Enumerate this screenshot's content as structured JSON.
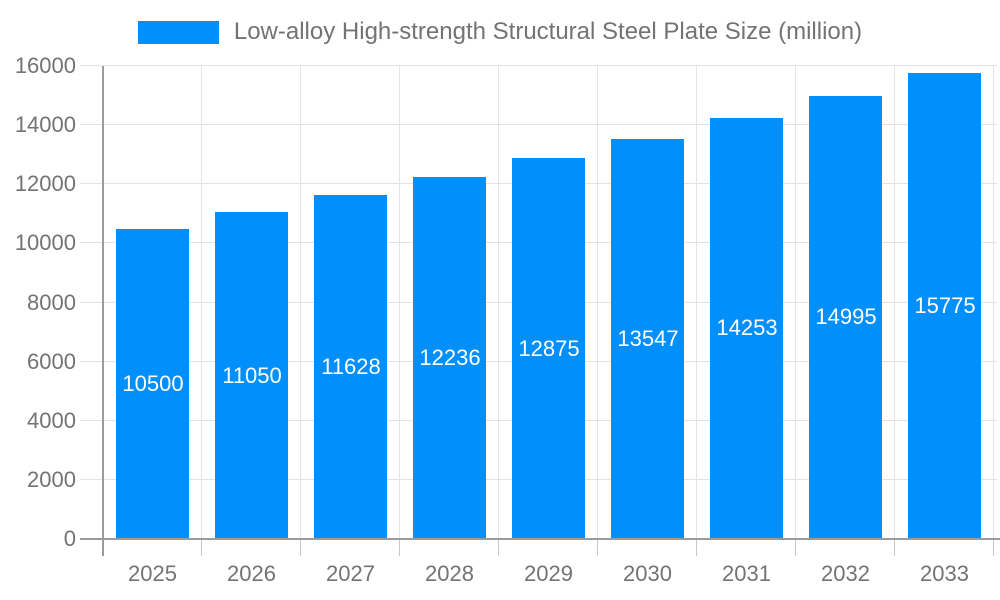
{
  "chart_data": {
    "type": "bar",
    "title": "",
    "xlabel": "",
    "ylabel": "",
    "categories": [
      "2025",
      "2026",
      "2027",
      "2028",
      "2029",
      "2030",
      "2031",
      "2032",
      "2033"
    ],
    "series": [
      {
        "name": "Low-alloy High-strength Structural Steel Plate Size (million)",
        "values": [
          10500,
          11050,
          11628,
          12236,
          12875,
          13547,
          14253,
          14995,
          15775
        ]
      }
    ],
    "ylim": [
      0,
      16000
    ],
    "yticks": [
      0,
      2000,
      4000,
      6000,
      8000,
      10000,
      12000,
      14000,
      16000
    ],
    "grid": true,
    "legend_position": "top",
    "data_labels_position": "inside-center",
    "colors": {
      "bar": "#008FFB",
      "grid_line": "#e3e3e3",
      "axis_line": "#9b9b9b",
      "tick_mark": "#c7c7c7",
      "tick_label": "#737373",
      "legend_text": "#737373",
      "data_label": "#ffffff",
      "background": "#ffffff"
    }
  }
}
